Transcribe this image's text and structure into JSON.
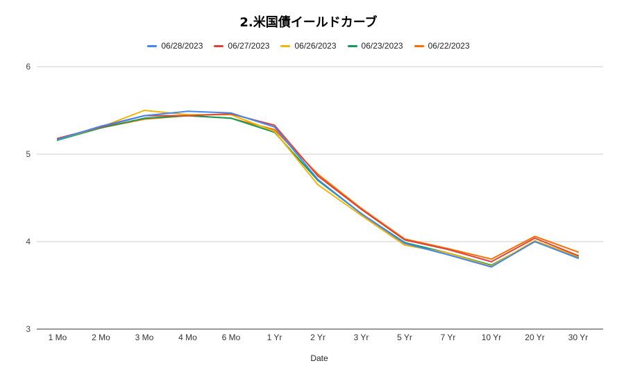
{
  "chart_data": {
    "type": "line",
    "title": "2.米国債イールドカーブ",
    "xlabel": "Date",
    "ylabel": "",
    "categories": [
      "1 Mo",
      "2 Mo",
      "3 Mo",
      "4 Mo",
      "6 Mo",
      "1 Yr",
      "2 Yr",
      "3 Yr",
      "5 Yr",
      "7 Yr",
      "10 Yr",
      "20 Yr",
      "30 Yr"
    ],
    "ylim": [
      3,
      6
    ],
    "yticks": [
      "3",
      "4",
      "5",
      "6"
    ],
    "grid": true,
    "legend_position": "top",
    "series": [
      {
        "name": "06/28/2023",
        "color": "#4285f4",
        "values": [
          5.17,
          5.32,
          5.44,
          5.49,
          5.47,
          5.31,
          4.71,
          4.32,
          3.98,
          3.85,
          3.71,
          4.0,
          3.81
        ]
      },
      {
        "name": "06/27/2023",
        "color": "#db4437",
        "values": [
          5.18,
          5.31,
          5.44,
          5.44,
          5.46,
          5.33,
          4.75,
          4.37,
          4.02,
          3.91,
          3.77,
          4.04,
          3.84
        ]
      },
      {
        "name": "06/26/2023",
        "color": "#f4b400",
        "values": [
          5.17,
          5.31,
          5.5,
          5.45,
          5.45,
          5.26,
          4.65,
          4.3,
          3.96,
          3.87,
          3.72,
          4.01,
          3.83
        ]
      },
      {
        "name": "06/23/2023",
        "color": "#0f9d58",
        "values": [
          5.16,
          5.3,
          5.41,
          5.44,
          5.41,
          5.25,
          4.7,
          4.32,
          3.99,
          3.87,
          3.73,
          4.0,
          3.82
        ]
      },
      {
        "name": "06/22/2023",
        "color": "#ff6d01",
        "values": [
          5.18,
          5.3,
          5.4,
          5.44,
          5.41,
          5.28,
          4.77,
          4.38,
          4.03,
          3.92,
          3.8,
          4.06,
          3.88
        ]
      }
    ]
  }
}
